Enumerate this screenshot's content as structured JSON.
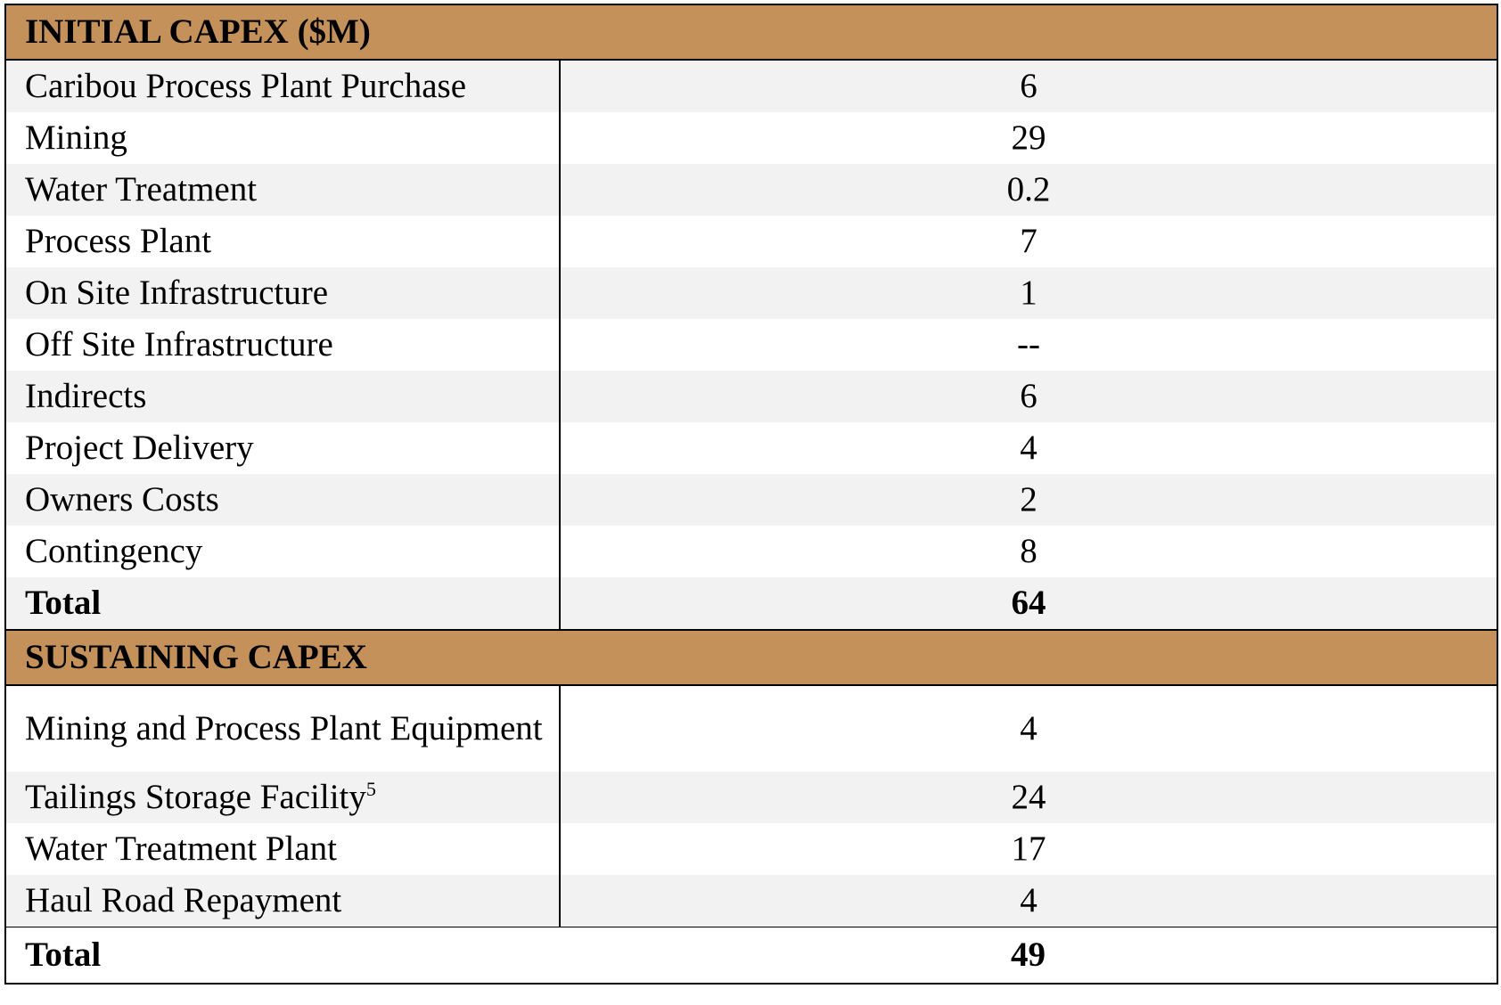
{
  "initial": {
    "header": "INITIAL CAPEX ($M)",
    "rows": [
      {
        "label": "Caribou Process Plant Purchase",
        "value": "6"
      },
      {
        "label": "Mining",
        "value": "29"
      },
      {
        "label": "Water Treatment",
        "value": "0.2"
      },
      {
        "label": "Process Plant",
        "value": "7"
      },
      {
        "label": "On Site Infrastructure",
        "value": "1"
      },
      {
        "label": "Off Site Infrastructure",
        "value": "--"
      },
      {
        "label": "Indirects",
        "value": "6"
      },
      {
        "label": "Project Delivery",
        "value": "4"
      },
      {
        "label": "Owners Costs",
        "value": "2"
      },
      {
        "label": "Contingency",
        "value": "8"
      }
    ],
    "total": {
      "label": "Total",
      "value": "64"
    }
  },
  "sustaining": {
    "header": "SUSTAINING CAPEX",
    "rows": [
      {
        "label": "Mining and Process Plant Equipment",
        "value": "4"
      },
      {
        "label": "Tailings Storage Facility",
        "footnote": "5",
        "value": "24"
      },
      {
        "label": "Water Treatment Plant",
        "value": "17"
      },
      {
        "label": "Haul Road Repayment",
        "value": "4"
      }
    ],
    "total": {
      "label": "Total",
      "value": "49"
    }
  },
  "colors": {
    "header_fill": "#c4915b",
    "row_shade": "#f2f2f2"
  }
}
